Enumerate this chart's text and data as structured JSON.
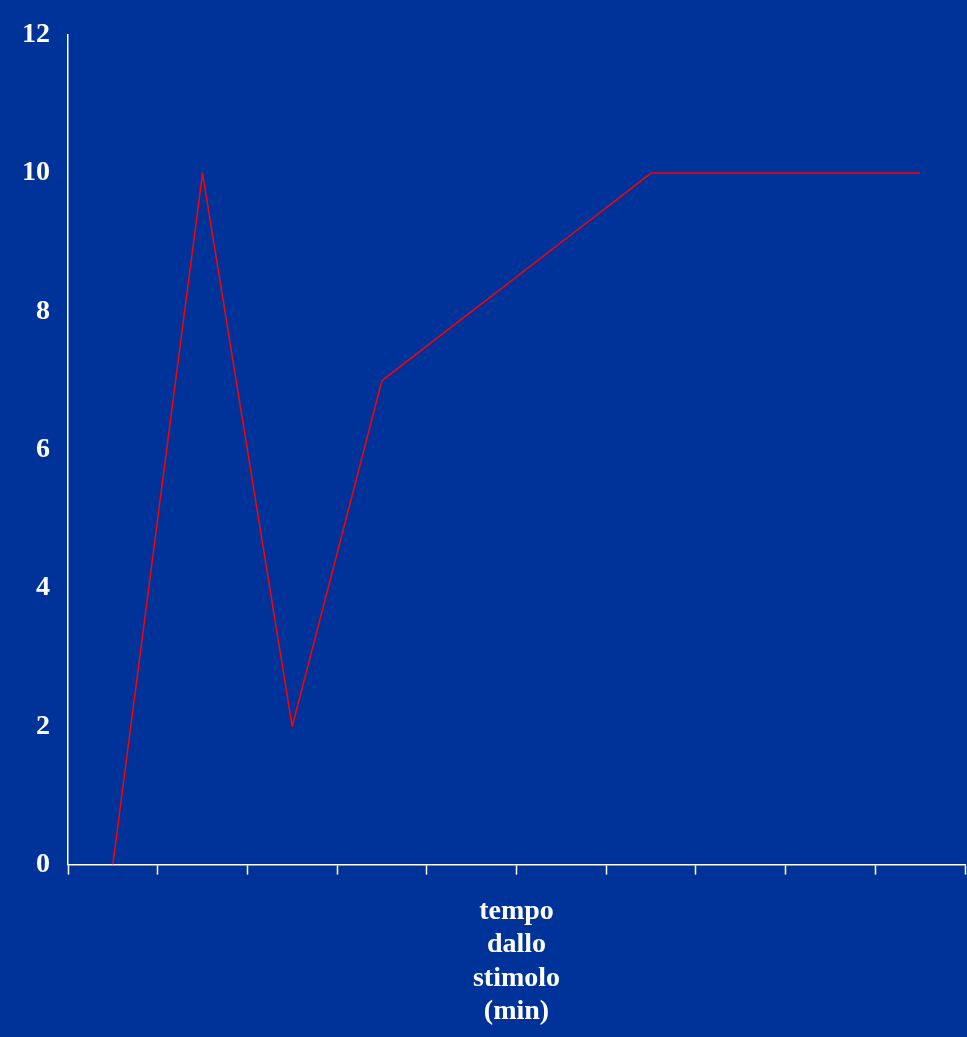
{
  "chart_data": {
    "type": "line",
    "xlabel": "tempo dallo stimolo (min)",
    "categories": [
      null,
      null,
      null,
      null,
      null,
      null,
      null,
      null,
      null,
      null
    ],
    "series": [
      {
        "color": "#ff0000",
        "values": [
          0,
          10,
          2,
          7,
          8,
          9,
          10,
          10,
          10,
          10
        ]
      }
    ],
    "ylim": [
      0,
      12
    ],
    "yticks": [
      0,
      2,
      4,
      6,
      8,
      10,
      12
    ],
    "grid": false,
    "legend": false,
    "marker": "none",
    "line_style": "solid",
    "tick_labels": "y"
  }
}
